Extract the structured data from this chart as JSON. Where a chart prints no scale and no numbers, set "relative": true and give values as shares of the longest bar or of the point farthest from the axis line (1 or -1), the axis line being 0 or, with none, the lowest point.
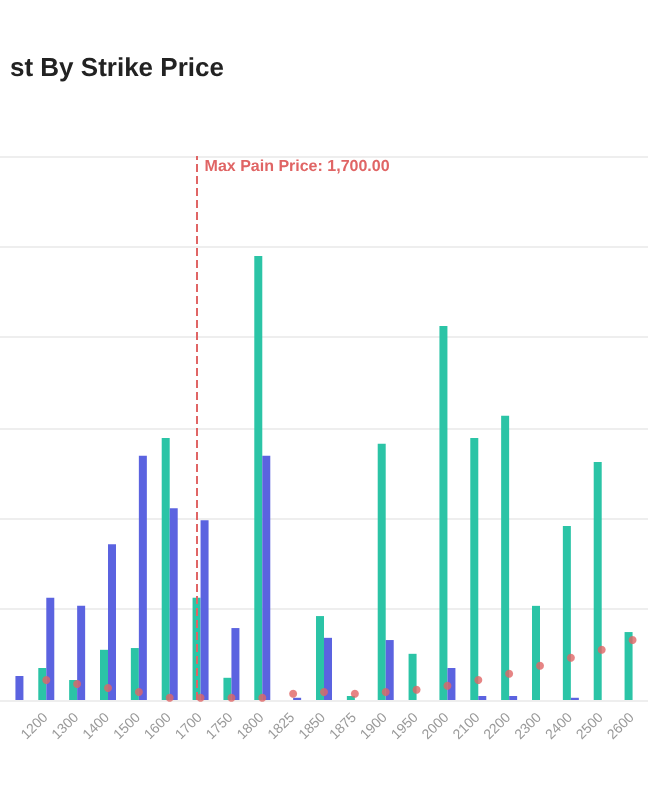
{
  "chart_data": {
    "type": "bar",
    "title": "st By Strike Price",
    "relative": true,
    "grid": "y",
    "categories": [
      null,
      "1200",
      "1300",
      "1400",
      "1500",
      "1600",
      "1700",
      "1750",
      "1800",
      "1825",
      "1850",
      "1875",
      "1900",
      "1950",
      "2000",
      "2100",
      "2200",
      "2300",
      "2400",
      "2500",
      "2600"
    ],
    "series": [
      {
        "color": "#2bc4a6",
        "values": [
          0,
          0.072,
          0.045,
          0.113,
          0.117,
          0.59,
          0.23,
          0.05,
          1,
          0,
          0.189,
          0.009,
          0.577,
          0.104,
          0.842,
          0.59,
          0.64,
          0.212,
          0.392,
          0.536,
          0.153
        ]
      },
      {
        "color": "#5b63e0",
        "values": [
          0.054,
          0.23,
          0.212,
          0.351,
          0.55,
          0.432,
          0.405,
          0.162,
          0.55,
          0.005,
          0.14,
          0,
          0.135,
          0,
          0.072,
          0.009,
          0.009,
          0,
          0.005,
          0,
          0
        ]
      },
      {
        "type": "scatter",
        "color": "#e06565",
        "values": [
          null,
          0.045,
          0.036,
          0.027,
          0.018,
          0.005,
          0.005,
          0.005,
          0.005,
          0.014,
          0.018,
          0.014,
          0.018,
          0.023,
          0.032,
          0.045,
          0.059,
          0.077,
          0.095,
          0.113,
          0.135
        ]
      }
    ],
    "ref_lines": [
      {
        "axis": "x",
        "value": "1700",
        "label": "Max Pain Price: 1,700.00",
        "color": "#e06565",
        "line_style": "dashed"
      }
    ]
  }
}
